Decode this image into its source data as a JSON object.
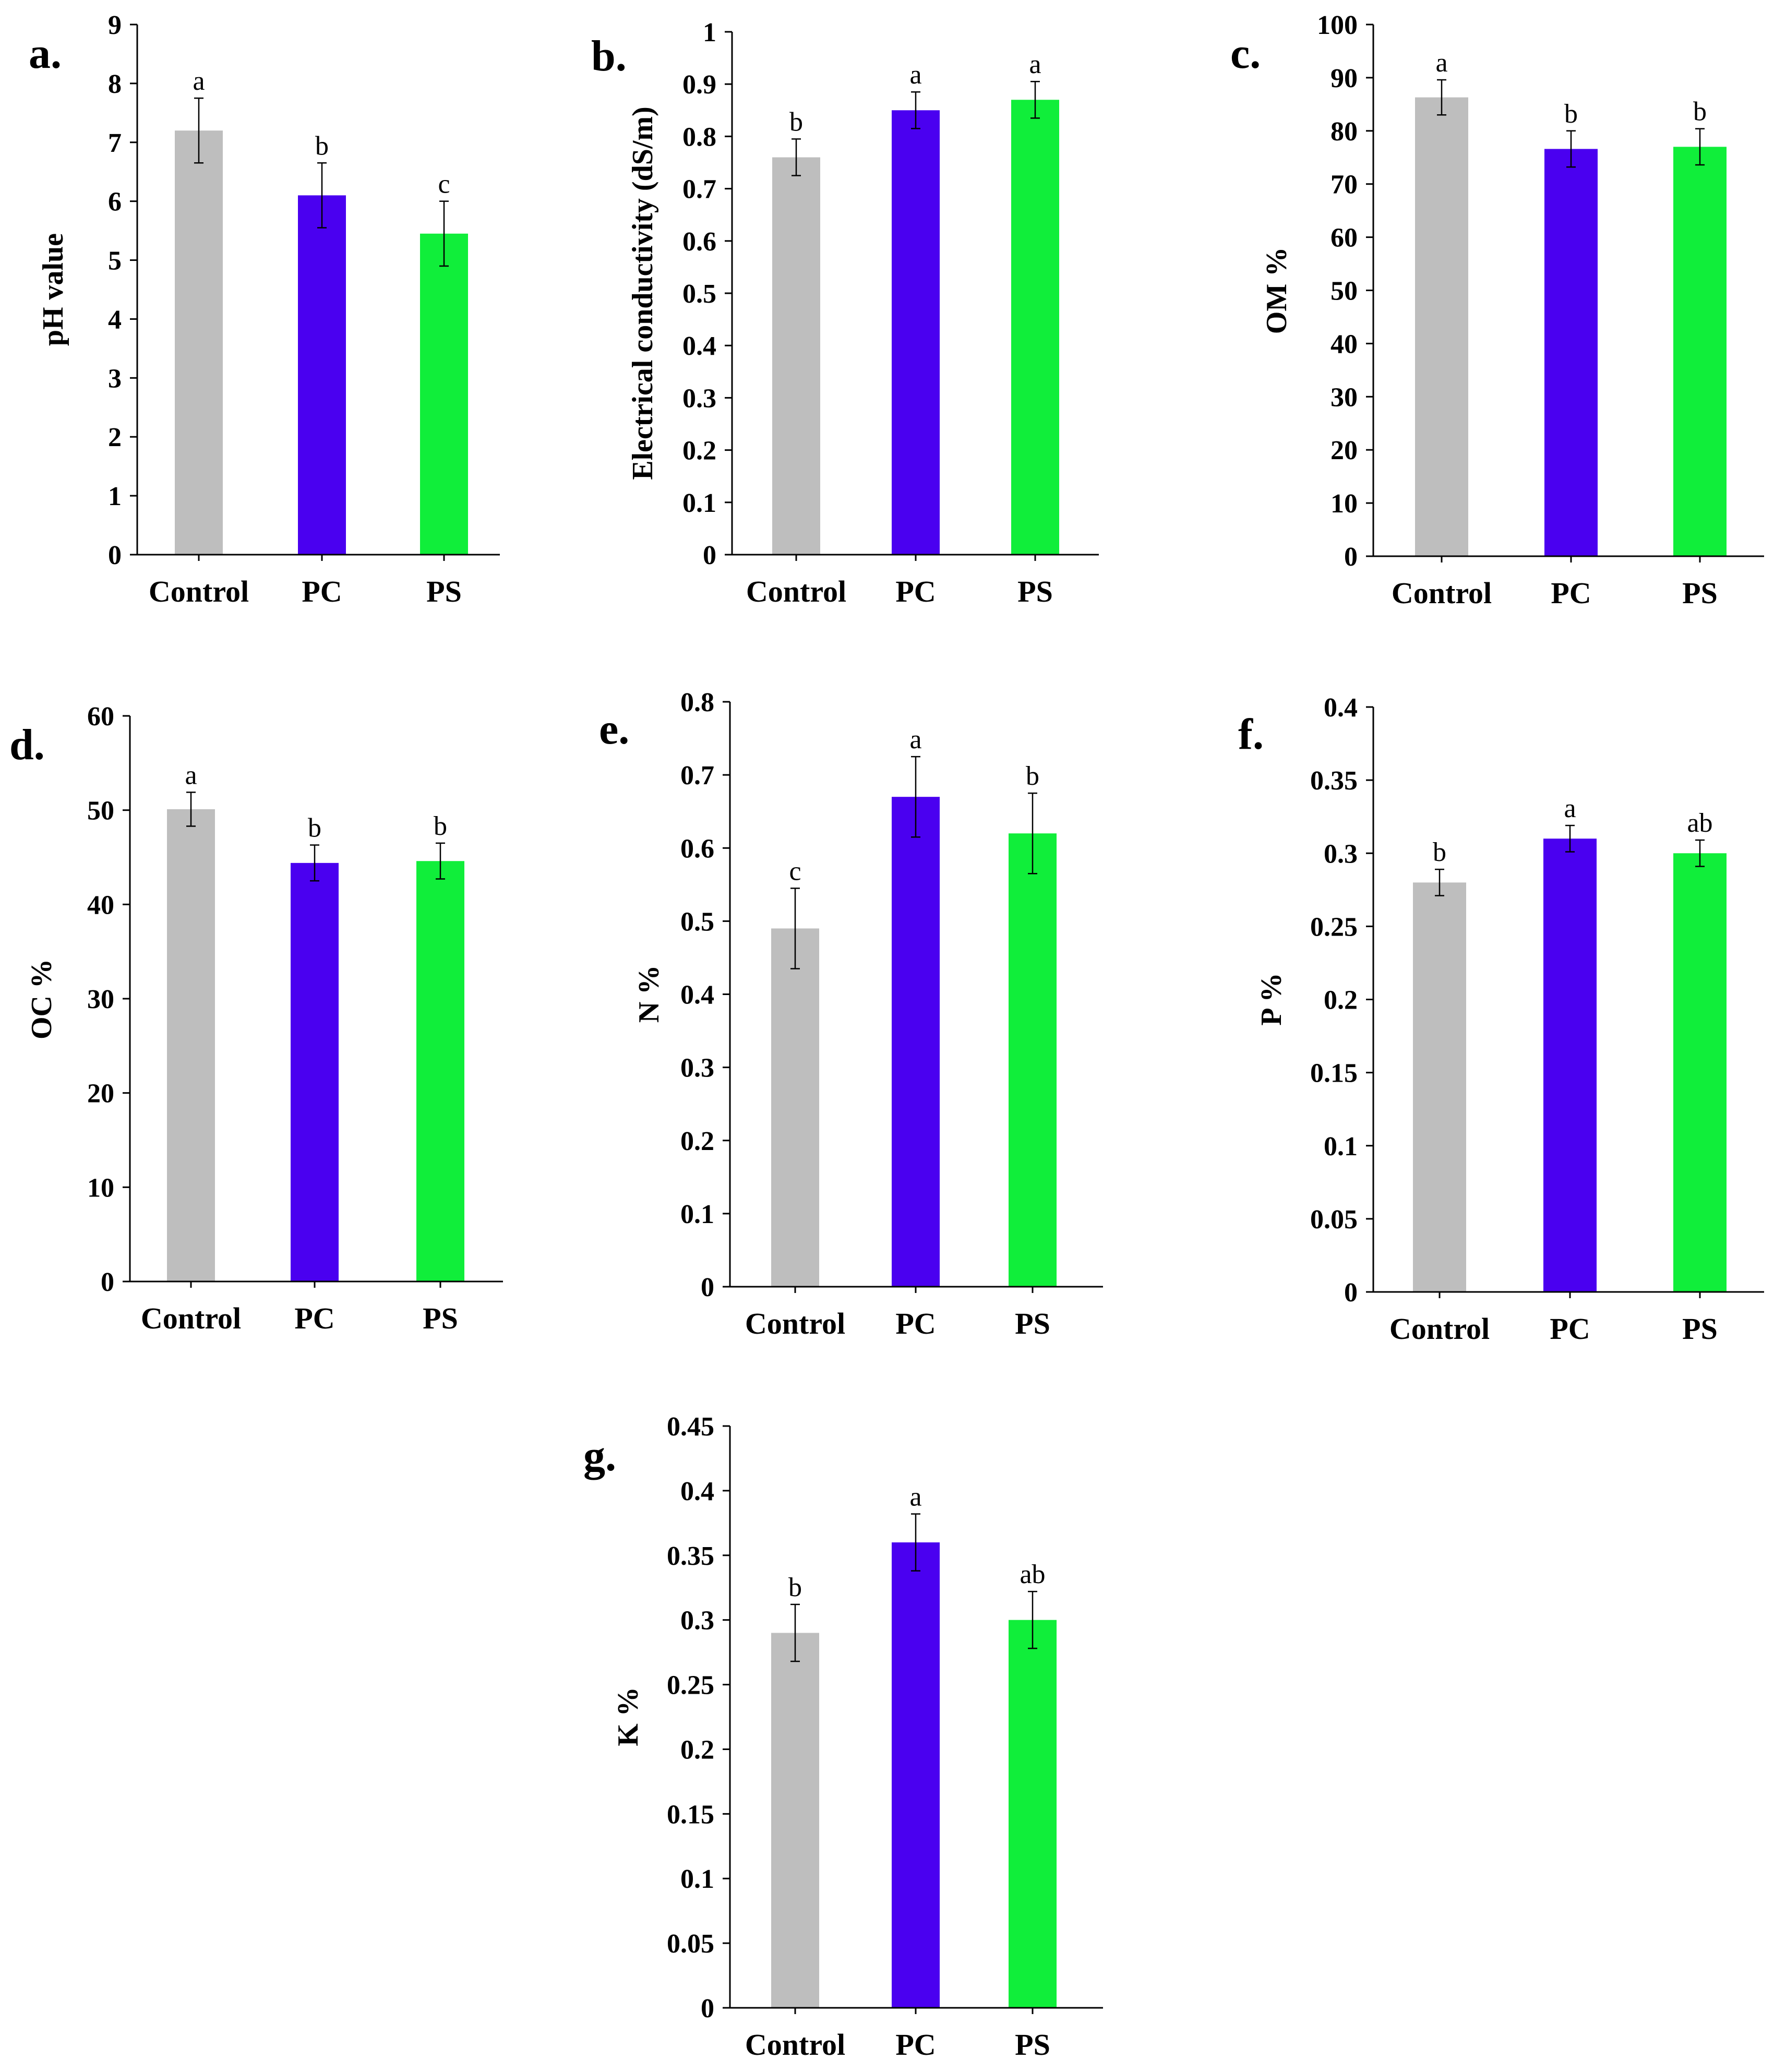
{
  "colors": {
    "Control": "#bebebe",
    "PC": "#4a00f0",
    "PS": "#10ee3a"
  },
  "chart_data": [
    {
      "type": "bar",
      "panel": "a.",
      "ylabel": "pH value",
      "categories": [
        "Control",
        "PC",
        "PS"
      ],
      "values": [
        7.2,
        6.1,
        5.45
      ],
      "errors": [
        0.55,
        0.55,
        0.55
      ],
      "significance": [
        "a",
        "b",
        "c"
      ],
      "ylim": [
        0,
        9
      ],
      "ticks": [
        "0",
        "1",
        "2",
        "3",
        "4",
        "5",
        "6",
        "7",
        "8",
        "9"
      ],
      "grid": false
    },
    {
      "type": "bar",
      "panel": "b.",
      "ylabel": "Electrical conductivity (dS/m)",
      "categories": [
        "Control",
        "PC",
        "PS"
      ],
      "values": [
        0.76,
        0.85,
        0.87
      ],
      "errors": [
        0.035,
        0.035,
        0.035
      ],
      "significance": [
        "b",
        "a",
        "a"
      ],
      "ylim": [
        0,
        1
      ],
      "ticks": [
        "0",
        "0.1",
        "0.2",
        "0.3",
        "0.4",
        "0.5",
        "0.6",
        "0.7",
        "0.8",
        "0.9",
        "1"
      ],
      "grid": false
    },
    {
      "type": "bar",
      "panel": "c.",
      "ylabel": "OM %",
      "categories": [
        "Control",
        "PC",
        "PS"
      ],
      "values": [
        86.3,
        76.6,
        77.0
      ],
      "errors": [
        3.3,
        3.4,
        3.4
      ],
      "significance": [
        "a",
        "b",
        "b"
      ],
      "ylim": [
        0,
        100
      ],
      "ticks": [
        "0",
        "10",
        "20",
        "30",
        "40",
        "50",
        "60",
        "70",
        "80",
        "90",
        "100"
      ],
      "grid": false
    },
    {
      "type": "bar",
      "panel": "d.",
      "ylabel": "OC %",
      "categories": [
        "Control",
        "PC",
        "PS"
      ],
      "values": [
        50.1,
        44.4,
        44.6
      ],
      "errors": [
        1.8,
        1.9,
        1.9
      ],
      "significance": [
        "a",
        "b",
        "b"
      ],
      "ylim": [
        0,
        60
      ],
      "ticks": [
        "0",
        "10",
        "20",
        "30",
        "40",
        "50",
        "60"
      ],
      "grid": false
    },
    {
      "type": "bar",
      "panel": "e.",
      "ylabel": "N %",
      "categories": [
        "Control",
        "PC",
        "PS"
      ],
      "values": [
        0.49,
        0.67,
        0.62
      ],
      "errors": [
        0.055,
        0.055,
        0.055
      ],
      "significance": [
        "c",
        "a",
        "b"
      ],
      "ylim": [
        0,
        0.8
      ],
      "ticks": [
        "0",
        "0.1",
        "0.2",
        "0.3",
        "0.4",
        "0.5",
        "0.6",
        "0.7",
        "0.8"
      ],
      "grid": false
    },
    {
      "type": "bar",
      "panel": "f.",
      "ylabel": "P %",
      "categories": [
        "Control",
        "PC",
        "PS"
      ],
      "values": [
        0.28,
        0.31,
        0.3
      ],
      "errors": [
        0.009,
        0.009,
        0.009
      ],
      "significance": [
        "b",
        "a",
        "ab"
      ],
      "ylim": [
        0,
        0.4
      ],
      "ticks": [
        "0",
        "0.05",
        "0.1",
        "0.15",
        "0.2",
        "0.25",
        "0.3",
        "0.35",
        "0.4"
      ],
      "grid": false
    },
    {
      "type": "bar",
      "panel": "g.",
      "ylabel": "K %",
      "categories": [
        "Control",
        "PC",
        "PS"
      ],
      "values": [
        0.29,
        0.36,
        0.3
      ],
      "errors": [
        0.022,
        0.022,
        0.022
      ],
      "significance": [
        "b",
        "a",
        "ab"
      ],
      "ylim": [
        0,
        0.45
      ],
      "ticks": [
        "0",
        "0.05",
        "0.1",
        "0.15",
        "0.2",
        "0.25",
        "0.3",
        "0.35",
        "0.4",
        "0.45"
      ],
      "grid": false
    }
  ]
}
